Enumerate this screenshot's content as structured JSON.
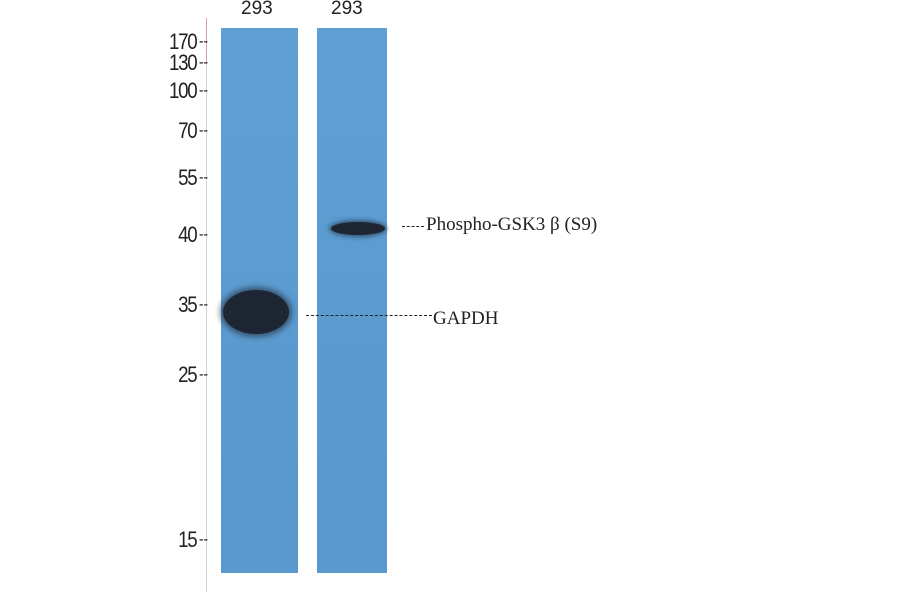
{
  "lanes": [
    {
      "label": "293"
    },
    {
      "label": "293"
    }
  ],
  "markers": [
    {
      "label": "170"
    },
    {
      "label": "130"
    },
    {
      "label": "100"
    },
    {
      "label": "70"
    },
    {
      "label": "55"
    },
    {
      "label": "40"
    },
    {
      "label": "35"
    },
    {
      "label": "25"
    },
    {
      "label": "15"
    }
  ],
  "marker_dash": "--",
  "bands": [
    {
      "label": "Phospho-GSK3 β  (S9)",
      "lane": 2
    },
    {
      "label": "GAPDH",
      "lane": 1
    }
  ],
  "colors": {
    "lane": "#5b9bd0",
    "band": "#1e2633"
  }
}
